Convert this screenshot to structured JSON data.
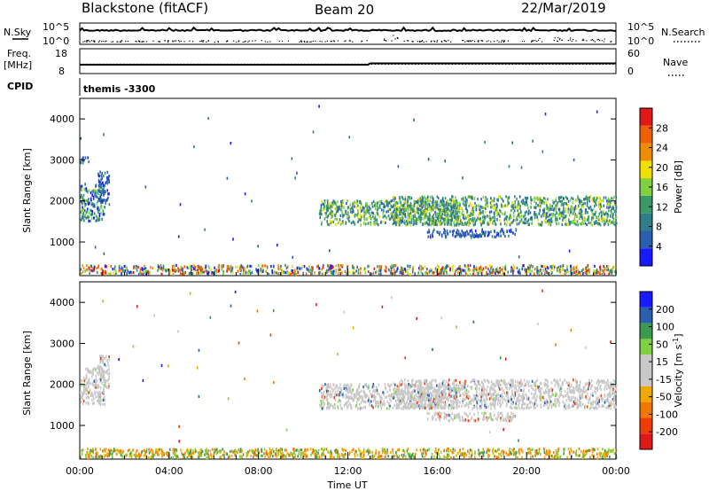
{
  "header": {
    "station": "Blackstone (fitACF)",
    "beam": "Beam 20",
    "date": "22/Mar/2019"
  },
  "top_panels": {
    "nsky_label": "N.Sky",
    "nsearch_label": "N.Search",
    "nsky_ticks": [
      "10^5",
      "10^0"
    ],
    "nsearch_ticks": [
      "10^5",
      "10^0"
    ],
    "freq_label_1": "Freq.",
    "freq_label_2": "[MHz]",
    "freq_ticks": [
      "18",
      "8"
    ],
    "nave_label": "Nave",
    "nave_ticks": [
      "60",
      "0"
    ],
    "cpid_label": "CPID",
    "cpid_value": "themis -3300"
  },
  "colors": {
    "power_scale": [
      "#1a1aff",
      "#2a5fb0",
      "#2f7f8a",
      "#3a9a6a",
      "#80d040",
      "#f0e000",
      "#f08c00",
      "#f06000",
      "#e01818"
    ],
    "velocity_scale": [
      "#e01818",
      "#f03c00",
      "#f07800",
      "#f0a800",
      "#c8c8c8",
      "#c8c8c8",
      "#80d040",
      "#3a9a50",
      "#2a5fb0",
      "#1a1aff"
    ]
  },
  "chart_data": [
    {
      "type": "heatmap",
      "name": "power",
      "ylabel": "Slant Range [km]",
      "xlim": [
        "00:00",
        "24:00"
      ],
      "ylim": [
        180,
        4500
      ],
      "y_ticks": [
        1000,
        2000,
        3000,
        4000
      ],
      "colorbar_label": "Power [dB]",
      "colorbar_ticks": [
        "4",
        "8",
        "12",
        "16",
        "20",
        "24",
        "28"
      ],
      "scatter_regions": [
        {
          "t_start": 0.0,
          "t_end": 1.1,
          "r_min": 1500,
          "r_max": 2400,
          "level": "medium-low"
        },
        {
          "t_start": 0.8,
          "t_end": 1.3,
          "r_min": 1900,
          "r_max": 2700,
          "level": "low"
        },
        {
          "t_start": 0.0,
          "t_end": 0.4,
          "r_min": 2900,
          "r_max": 3050,
          "level": "low"
        },
        {
          "t_start": 10.7,
          "t_end": 17.0,
          "r_min": 1400,
          "r_max": 2000,
          "level": "medium"
        },
        {
          "t_start": 14.0,
          "t_end": 24.0,
          "r_min": 1400,
          "r_max": 2100,
          "level": "medium"
        },
        {
          "t_start": 15.5,
          "t_end": 19.5,
          "r_min": 1100,
          "r_max": 1300,
          "level": "low"
        },
        {
          "t_start": 0.0,
          "t_end": 24.0,
          "r_min": 200,
          "r_max": 420,
          "level": "mixed"
        }
      ]
    },
    {
      "type": "heatmap",
      "name": "velocity",
      "ylabel": "Slant Range [km]",
      "xlabel": "Time UT",
      "xlim": [
        "00:00",
        "24:00"
      ],
      "ylim": [
        180,
        4500
      ],
      "y_ticks": [
        1000,
        2000,
        3000,
        4000
      ],
      "x_ticks": [
        "00:00",
        "04:00",
        "08:00",
        "12:00",
        "16:00",
        "20:00",
        "00:00"
      ],
      "colorbar_label": "Velocity [m s^-1]",
      "colorbar_ticks": [
        "-200",
        "-100",
        "-50",
        "-15",
        "15",
        "50",
        "100",
        "200"
      ],
      "scatter_regions": [
        {
          "t_start": 0.0,
          "t_end": 1.1,
          "r_min": 1500,
          "r_max": 2400,
          "level": "near-zero"
        },
        {
          "t_start": 0.8,
          "t_end": 1.3,
          "r_min": 1900,
          "r_max": 2700,
          "level": "near-zero"
        },
        {
          "t_start": 10.7,
          "t_end": 17.0,
          "r_min": 1400,
          "r_max": 2000,
          "level": "near-zero"
        },
        {
          "t_start": 14.0,
          "t_end": 24.0,
          "r_min": 1400,
          "r_max": 2100,
          "level": "near-zero"
        },
        {
          "t_start": 15.5,
          "t_end": 19.5,
          "r_min": 1100,
          "r_max": 1300,
          "level": "near-zero"
        },
        {
          "t_start": 0.0,
          "t_end": 24.0,
          "r_min": 200,
          "r_max": 420,
          "level": "negative-positive-mix"
        }
      ]
    }
  ]
}
